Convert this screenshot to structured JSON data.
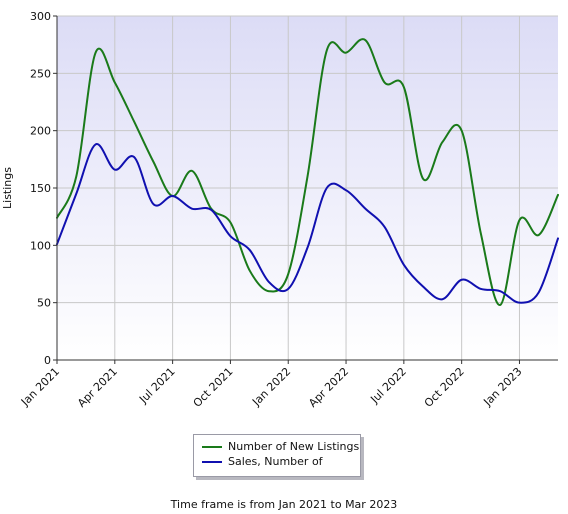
{
  "chart_data": {
    "type": "line",
    "ylabel": "Listings",
    "xlabel": "",
    "ylim": [
      0,
      300
    ],
    "yticks": [
      0,
      50,
      100,
      150,
      200,
      250,
      300
    ],
    "xlim": [
      "Jan 2021",
      "Mar 2023"
    ],
    "xtick_labels": [
      "Jan 2021",
      "Apr 2021",
      "Jul 2021",
      "Oct 2021",
      "Jan 2022",
      "Apr 2022",
      "Jul 2022",
      "Oct 2022",
      "Jan 2023"
    ],
    "categories": [
      "Jan 2021",
      "Feb 2021",
      "Mar 2021",
      "Apr 2021",
      "May 2021",
      "Jun 2021",
      "Jul 2021",
      "Aug 2021",
      "Sep 2021",
      "Oct 2021",
      "Nov 2021",
      "Dec 2021",
      "Jan 2022",
      "Feb 2022",
      "Mar 2022",
      "Apr 2022",
      "May 2022",
      "Jun 2022",
      "Jul 2022",
      "Aug 2022",
      "Sep 2022",
      "Oct 2022",
      "Nov 2022",
      "Dec 2022",
      "Jan 2023",
      "Feb 2023",
      "Mar 2023"
    ],
    "series": [
      {
        "name": "Number of New Listings",
        "color": "#1a7a1a",
        "values": [
          124,
          160,
          268,
          242,
          208,
          173,
          143,
          165,
          132,
          120,
          78,
          60,
          75,
          160,
          270,
          268,
          279,
          242,
          238,
          158,
          190,
          200,
          110,
          48,
          122,
          109,
          144
        ]
      },
      {
        "name": "Sales, Number of",
        "color": "#1010b0",
        "values": [
          101,
          145,
          188,
          166,
          177,
          136,
          143,
          132,
          131,
          108,
          96,
          68,
          62,
          98,
          150,
          148,
          132,
          116,
          83,
          64,
          53,
          70,
          62,
          60,
          50,
          59,
          106
        ]
      }
    ],
    "grid": true,
    "legend_position": "bottom-center"
  },
  "footer": "Time frame is from Jan 2021 to Mar 2023"
}
